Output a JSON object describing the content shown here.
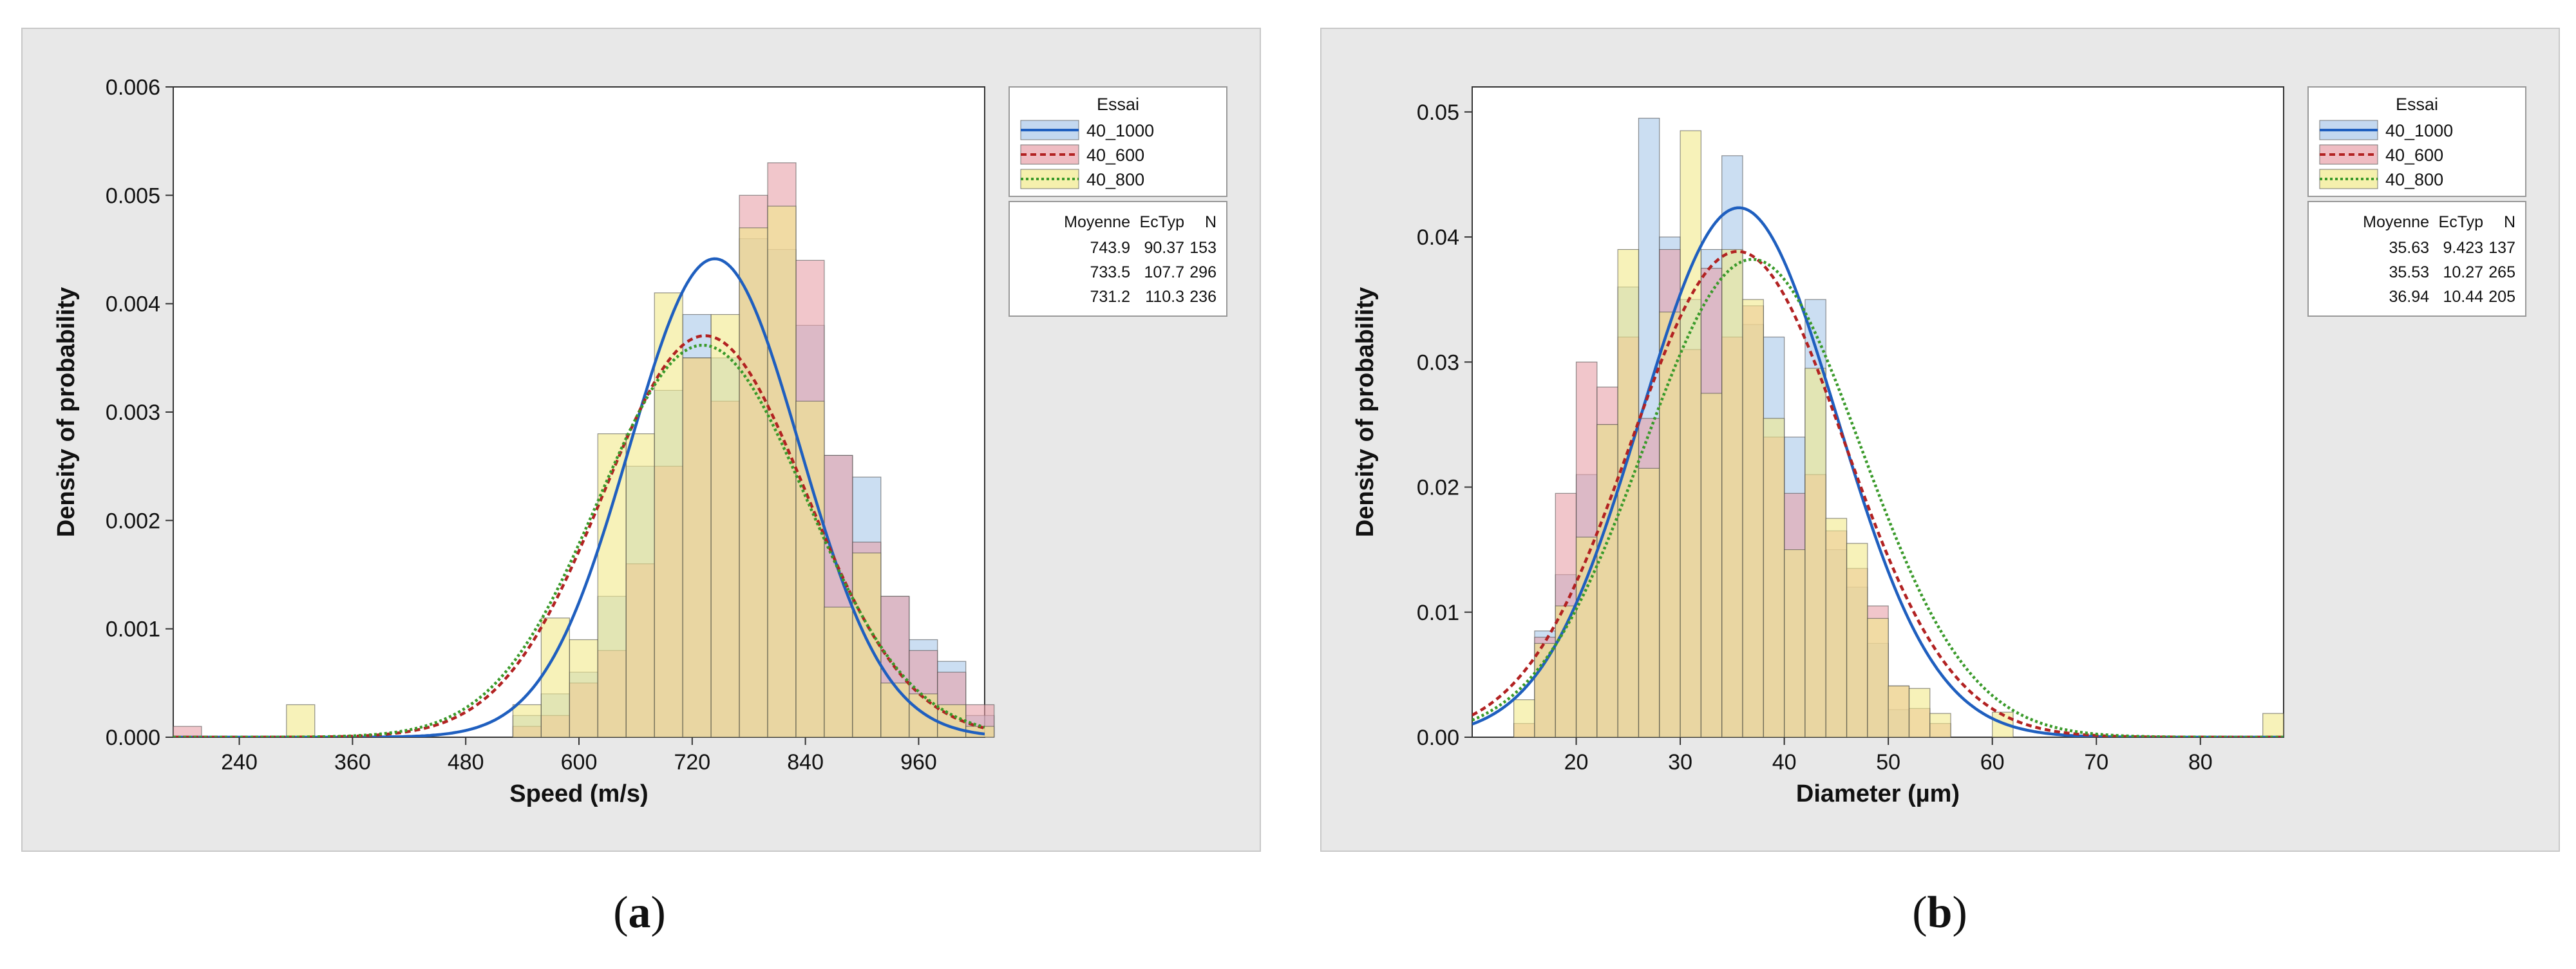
{
  "chart_data": [
    {
      "type": "histogram",
      "panel_label": "a",
      "xlabel": "Speed (m/s)",
      "ylabel": "Density of probability",
      "xlim": [
        170,
        1030
      ],
      "ylim": [
        0,
        0.006
      ],
      "xticks": [
        240,
        360,
        480,
        600,
        720,
        840,
        960
      ],
      "yticks": [
        0,
        0.001,
        0.002,
        0.003,
        0.004,
        0.005,
        0.006
      ],
      "ytick_labels": [
        "0.000",
        "0.001",
        "0.002",
        "0.003",
        "0.004",
        "0.005",
        "0.006"
      ],
      "bin_start": 170,
      "bin_width": 30,
      "legend": {
        "title": "Essai",
        "stats_header": [
          "Moyenne",
          "EcTyp",
          "N"
        ]
      },
      "series": [
        {
          "name": "40_1000",
          "color": "#1f5fbf",
          "fill": "#a9c8ea",
          "dash": "solid",
          "mean": 743.9,
          "sd": 90.37,
          "n": 153,
          "stats_text": [
            "743.9",
            "90.37",
            "153"
          ],
          "values": [
            0,
            0,
            0,
            0,
            0,
            0,
            0,
            0,
            0,
            0,
            0,
            0,
            0.0002,
            0.0004,
            0.0006,
            0.0013,
            0.0025,
            0.0032,
            0.0039,
            0.0035,
            0.0046,
            0.0045,
            0.0038,
            0.0026,
            0.0024,
            0.0013,
            0.0009,
            0.0007,
            0.0002
          ]
        },
        {
          "name": "40_600",
          "color": "#b22222",
          "fill": "#e8a0a8",
          "dash": "9 6",
          "mean": 733.5,
          "sd": 107.7,
          "n": 296,
          "stats_text": [
            "733.5",
            "107.7",
            "296"
          ],
          "values": [
            0.0001,
            0,
            0,
            0,
            0,
            0,
            0,
            0,
            0,
            0,
            0,
            0,
            0.0001,
            0.0002,
            0.0005,
            0.0008,
            0.0016,
            0.0025,
            0.0035,
            0.0031,
            0.005,
            0.0053,
            0.0044,
            0.0026,
            0.0018,
            0.0013,
            0.0008,
            0.0006,
            0.0003
          ]
        },
        {
          "name": "40_800",
          "color": "#3a9a2a",
          "fill": "#f1ea8a",
          "dash": "4 4",
          "mean": 731.2,
          "sd": 110.3,
          "n": 236,
          "stats_text": [
            "731.2",
            "110.3",
            "236"
          ],
          "values": [
            0,
            0,
            0,
            0,
            0.0003,
            0,
            0,
            0,
            0,
            0,
            0,
            0,
            0.0003,
            0.0011,
            0.0009,
            0.0028,
            0.0028,
            0.0041,
            0.0035,
            0.0039,
            0.0047,
            0.0049,
            0.0031,
            0.0012,
            0.0017,
            0.0005,
            0.0004,
            0.0003,
            0.0001
          ]
        }
      ]
    },
    {
      "type": "histogram",
      "panel_label": "b",
      "xlabel": "Diameter (µm)",
      "ylabel": "Density of probability",
      "xlim": [
        10,
        88
      ],
      "ylim": [
        0,
        0.052
      ],
      "xticks": [
        20,
        30,
        40,
        50,
        60,
        70,
        80
      ],
      "yticks": [
        0,
        0.01,
        0.02,
        0.03,
        0.04,
        0.05
      ],
      "ytick_labels": [
        "0.00",
        "0.01",
        "0.02",
        "0.03",
        "0.04",
        "0.05"
      ],
      "bin_start": 14,
      "bin_width": 2,
      "legend": {
        "title": "Essai",
        "stats_header": [
          "Moyenne",
          "EcTyp",
          "N"
        ]
      },
      "series": [
        {
          "name": "40_1000",
          "color": "#1f5fbf",
          "fill": "#a9c8ea",
          "dash": "solid",
          "mean": 35.63,
          "sd": 9.423,
          "n": 137,
          "stats_text": [
            "35.63",
            "9.423",
            "137"
          ],
          "values": [
            0,
            0.0085,
            0.013,
            0.021,
            0.025,
            0.036,
            0.0495,
            0.04,
            0.035,
            0.039,
            0.0465,
            0.033,
            0.032,
            0.024,
            0.035,
            0.015,
            0.012,
            0.0075,
            0.0022,
            0,
            0,
            0,
            0,
            0,
            0,
            0,
            0,
            0,
            0,
            0,
            0,
            0,
            0,
            0,
            0,
            0,
            0
          ]
        },
        {
          "name": "40_600",
          "color": "#b22222",
          "fill": "#e8a0a8",
          "dash": "9 6",
          "mean": 35.53,
          "sd": 10.27,
          "n": 265,
          "stats_text": [
            "35.53",
            "10.27",
            "265"
          ],
          "values": [
            0.0011,
            0.008,
            0.0195,
            0.03,
            0.028,
            0.032,
            0.0255,
            0.039,
            0.031,
            0.0375,
            0.032,
            0.0345,
            0.024,
            0.0195,
            0.021,
            0.0165,
            0.0135,
            0.0105,
            0.0041,
            0.0023,
            0.0011,
            0,
            0,
            0,
            0,
            0,
            0,
            0,
            0,
            0,
            0,
            0,
            0,
            0,
            0,
            0,
            0
          ]
        },
        {
          "name": "40_800",
          "color": "#3a9a2a",
          "fill": "#f1ea8a",
          "dash": "4 4",
          "mean": 36.94,
          "sd": 10.44,
          "n": 205,
          "stats_text": [
            "36.94",
            "10.44",
            "205"
          ],
          "values": [
            0.003,
            0.0075,
            0.0105,
            0.016,
            0.025,
            0.039,
            0.0215,
            0.034,
            0.0485,
            0.0275,
            0.039,
            0.035,
            0.0255,
            0.015,
            0.0295,
            0.0175,
            0.0155,
            0.0095,
            0.0041,
            0.0039,
            0.0019,
            0,
            0,
            0.002,
            0,
            0,
            0,
            0,
            0,
            0,
            0,
            0,
            0,
            0,
            0,
            0,
            0.0019
          ]
        }
      ]
    }
  ],
  "panels": {
    "a": {
      "label": "a"
    },
    "b": {
      "label": "b"
    }
  }
}
